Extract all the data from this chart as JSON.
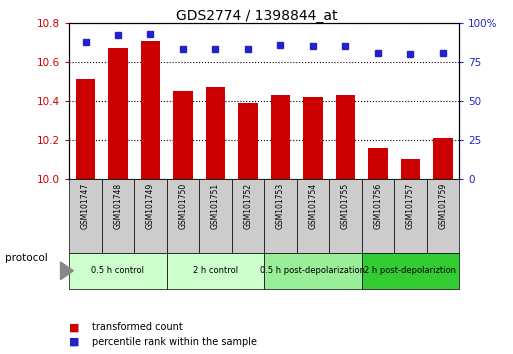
{
  "title": "GDS2774 / 1398844_at",
  "samples": [
    "GSM101747",
    "GSM101748",
    "GSM101749",
    "GSM101750",
    "GSM101751",
    "GSM101752",
    "GSM101753",
    "GSM101754",
    "GSM101755",
    "GSM101756",
    "GSM101757",
    "GSM101759"
  ],
  "bar_values": [
    10.51,
    10.67,
    10.71,
    10.45,
    10.47,
    10.39,
    10.43,
    10.42,
    10.43,
    10.16,
    10.1,
    10.21
  ],
  "dot_values": [
    88,
    92,
    93,
    83,
    83,
    83,
    86,
    85,
    85,
    81,
    80,
    81
  ],
  "ylim_left": [
    10,
    10.8
  ],
  "ylim_right": [
    0,
    100
  ],
  "yticks_left": [
    10,
    10.2,
    10.4,
    10.6,
    10.8
  ],
  "yticks_right": [
    0,
    25,
    50,
    75,
    100
  ],
  "bar_color": "#cc0000",
  "dot_color": "#2222cc",
  "bar_bottom": 10,
  "group_boundaries": [
    {
      "label": "0.5 h control",
      "start": 0,
      "end": 3,
      "color": "#ccffcc"
    },
    {
      "label": "2 h control",
      "start": 3,
      "end": 6,
      "color": "#ccffcc"
    },
    {
      "label": "0.5 h post-depolarization",
      "start": 6,
      "end": 9,
      "color": "#99ee99"
    },
    {
      "label": "2 h post-depolariztion",
      "start": 9,
      "end": 12,
      "color": "#33cc33"
    }
  ],
  "legend_items": [
    {
      "label": "transformed count",
      "color": "#cc0000"
    },
    {
      "label": "percentile rank within the sample",
      "color": "#2222cc"
    }
  ],
  "tick_color_left": "#cc0000",
  "tick_color_right": "#2222cc",
  "sample_box_color": "#cccccc",
  "bar_width": 0.6
}
